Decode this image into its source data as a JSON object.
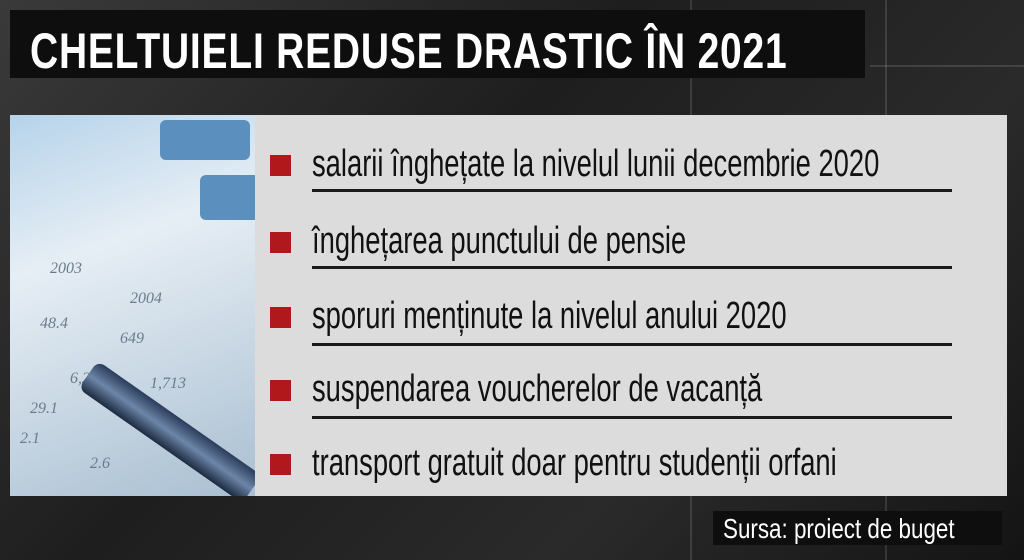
{
  "title": "CHELTUIELI REDUSE DRASTIC ÎN 2021",
  "items": [
    {
      "label": "salarii înghețate la nivelul lunii decembrie 2020"
    },
    {
      "label": "înghețarea punctului de pensie"
    },
    {
      "label": "sporuri menținute la nivelul anului 2020"
    },
    {
      "label": "suspendarea voucherelor de vacanță"
    },
    {
      "label": "transport gratuit doar pentru studenții orfani"
    }
  ],
  "source": "Sursa: proiect de buget",
  "colors": {
    "bullet": "#b0181b",
    "panel": "#dcdcdc",
    "title_bg": "#0e0e0e"
  }
}
